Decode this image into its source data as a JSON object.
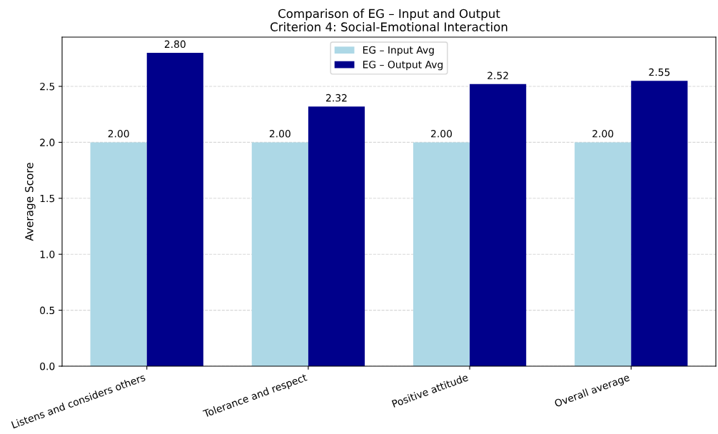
{
  "chart_data": {
    "type": "bar",
    "title": "Comparison of EG – Input and Output\nCriterion 4: Social-Emotional Interaction",
    "ylabel": "Average Score",
    "categories": [
      "Listens and considers others",
      "Tolerance and respect",
      "Positive attitude",
      "Overall average"
    ],
    "series": [
      {
        "name": "EG – Input Avg",
        "color": "#add8e6",
        "values": [
          2.0,
          2.0,
          2.0,
          2.0
        ],
        "value_labels": [
          "2.00",
          "2.00",
          "2.00",
          "2.00"
        ]
      },
      {
        "name": "EG – Output Avg",
        "color": "#00008b",
        "values": [
          2.8,
          2.32,
          2.52,
          2.55
        ],
        "value_labels": [
          "2.80",
          "2.32",
          "2.52",
          "2.55"
        ]
      }
    ],
    "ylim": [
      0,
      2.94
    ],
    "yticks": [
      {
        "value": 0,
        "label": "0.0"
      },
      0.5,
      {
        "value": 1,
        "label": "1.0"
      },
      1.5,
      {
        "value": 2,
        "label": "2.0"
      },
      2.5
    ],
    "grid": "y",
    "legend": "top"
  }
}
